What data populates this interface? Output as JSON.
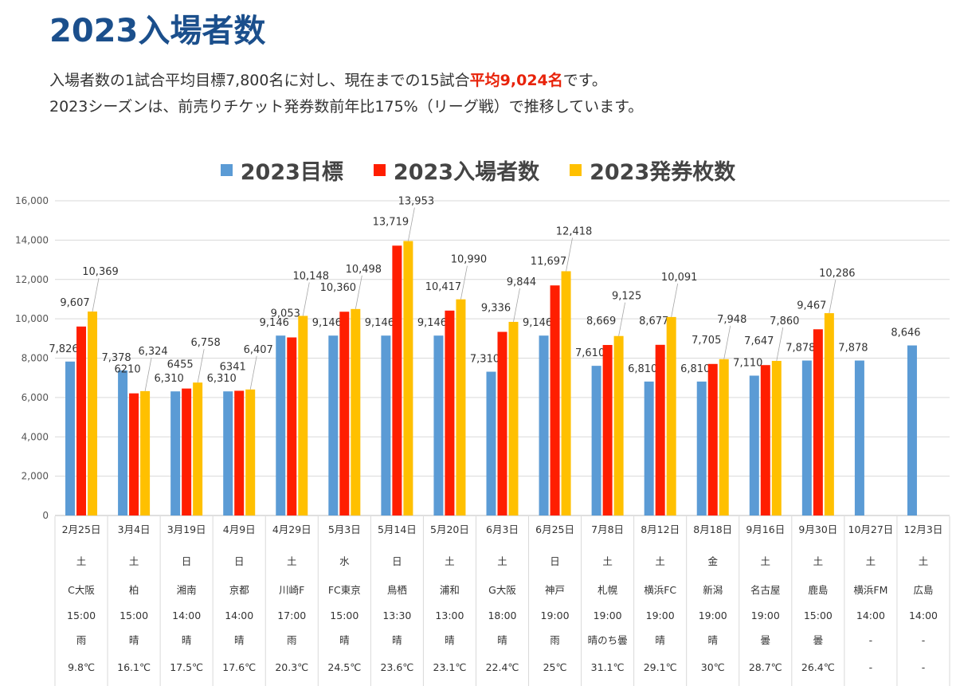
{
  "header": {
    "title": "2023入場者数",
    "line1_before": "入場者数の1試合平均目標7,800名に対し、現在までの15試合",
    "line1_highlight": "平均9,024名",
    "line1_after": "です。",
    "line2": "2023シーズンは、前売りチケット発券数前年比175%（リーグ戦）で推移しています。"
  },
  "colors": {
    "target": "#5b9bd5",
    "attendance": "#ff1e00",
    "tickets": "#ffc000",
    "title": "#1b4f8c",
    "highlight": "#e8230a"
  },
  "chart_data": {
    "type": "bar",
    "ylim": [
      0,
      16000
    ],
    "yticks": [
      "0",
      "2,000",
      "4,000",
      "6,000",
      "8,000",
      "10,000",
      "12,000",
      "14,000",
      "16,000"
    ],
    "grid": true,
    "legend_position": "top-center",
    "categories": [
      "2月25日",
      "3月4日",
      "3月19日",
      "4月9日",
      "4月29日",
      "5月3日",
      "5月14日",
      "5月20日",
      "6月3日",
      "6月25日",
      "7月8日",
      "8月12日",
      "8月18日",
      "9月16日",
      "9月30日",
      "10月27日",
      "12月3日"
    ],
    "category_rows": {
      "weekday": [
        "土",
        "土",
        "日",
        "日",
        "土",
        "水",
        "日",
        "土",
        "土",
        "日",
        "土",
        "土",
        "金",
        "土",
        "土",
        "土",
        "土"
      ],
      "opponent": [
        "C大阪",
        "柏",
        "湘南",
        "京都",
        "川崎F",
        "FC東京",
        "鳥栖",
        "浦和",
        "G大阪",
        "神戸",
        "札幌",
        "横浜FC",
        "新潟",
        "名古屋",
        "鹿島",
        "横浜FM",
        "広島"
      ],
      "kickoff": [
        "15:00",
        "15:00",
        "14:00",
        "14:00",
        "17:00",
        "15:00",
        "13:30",
        "13:00",
        "18:00",
        "19:00",
        "19:00",
        "19:00",
        "19:00",
        "19:00",
        "15:00",
        "14:00",
        "14:00"
      ],
      "weather": [
        "雨",
        "晴",
        "晴",
        "晴",
        "雨",
        "晴",
        "晴",
        "晴",
        "晴",
        "雨",
        "晴のち曇",
        "晴",
        "晴",
        "曇",
        "曇",
        "-",
        "-"
      ],
      "temperature": [
        "9.8℃",
        "16.1℃",
        "17.5℃",
        "17.6℃",
        "20.3℃",
        "24.5℃",
        "23.6℃",
        "23.1℃",
        "22.4℃",
        "25℃",
        "31.1℃",
        "29.1℃",
        "30℃",
        "28.7℃",
        "26.4℃",
        "-",
        "-"
      ]
    },
    "series": [
      {
        "name": "2023目標",
        "values": [
          7826,
          7378,
          6310,
          6310,
          9146,
          9146,
          9146,
          9146,
          7310,
          9146,
          7610,
          6810,
          6810,
          7110,
          7878,
          7878,
          8646
        ],
        "labels": [
          "7,826",
          "7,378",
          "6,310",
          "6,310",
          "9,146",
          "9,146",
          "9,146",
          "9,146",
          "7,310",
          "9,146",
          "7,610",
          "6,810",
          "6,810",
          "7,110",
          "7,878",
          "7,878",
          "8,646"
        ]
      },
      {
        "name": "2023入場者数",
        "values": [
          9607,
          6210,
          6455,
          6341,
          9053,
          10360,
          13719,
          10417,
          9336,
          11697,
          8669,
          8677,
          7705,
          7647,
          9467,
          null,
          null
        ],
        "labels": [
          "9,607",
          "6210",
          "6455",
          "6341",
          "9,053",
          "10,360",
          "13,719",
          "10,417",
          "9,336",
          "11,697",
          "8,669",
          "8,677",
          "7,705",
          "7,647",
          "9,467",
          "",
          ""
        ]
      },
      {
        "name": "2023発券枚数",
        "values": [
          10369,
          6324,
          6758,
          6407,
          10148,
          10498,
          13953,
          10990,
          9844,
          12418,
          9125,
          10091,
          7948,
          7860,
          10286,
          null,
          null
        ],
        "labels": [
          "10,369",
          "6,324",
          "6,758",
          "6,407",
          "10,148",
          "10,498",
          "13,953",
          "10,990",
          "9,844",
          "12,418",
          "9,125",
          "10,091",
          "7,948",
          "7,860",
          "10,286",
          "",
          ""
        ]
      }
    ]
  }
}
